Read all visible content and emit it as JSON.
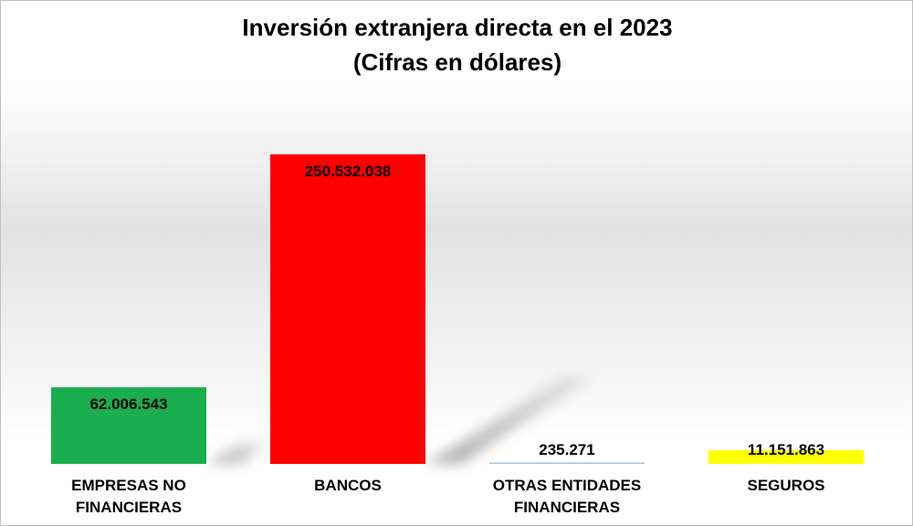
{
  "chart_data": {
    "type": "bar",
    "title": "Inversión extranjera directa en el 2023",
    "subtitle": "(Cifras en dólares)",
    "categories": [
      [
        "EMPRESAS NO",
        "FINANCIERAS"
      ],
      [
        "BANCOS"
      ],
      [
        "OTRAS ENTIDADES",
        "FINANCIERAS"
      ],
      [
        "SEGUROS"
      ]
    ],
    "values": [
      62006543,
      250532038,
      235271,
      11151863
    ],
    "value_labels": [
      "62.006.543",
      "250.532.038",
      "235.271",
      "11.151.863"
    ],
    "colors": [
      "#1aae4f",
      "#ff0000",
      "#9dc3e6",
      "#ffff00"
    ],
    "ylim": [
      0,
      250532038
    ],
    "grid": false,
    "legend": "none"
  }
}
